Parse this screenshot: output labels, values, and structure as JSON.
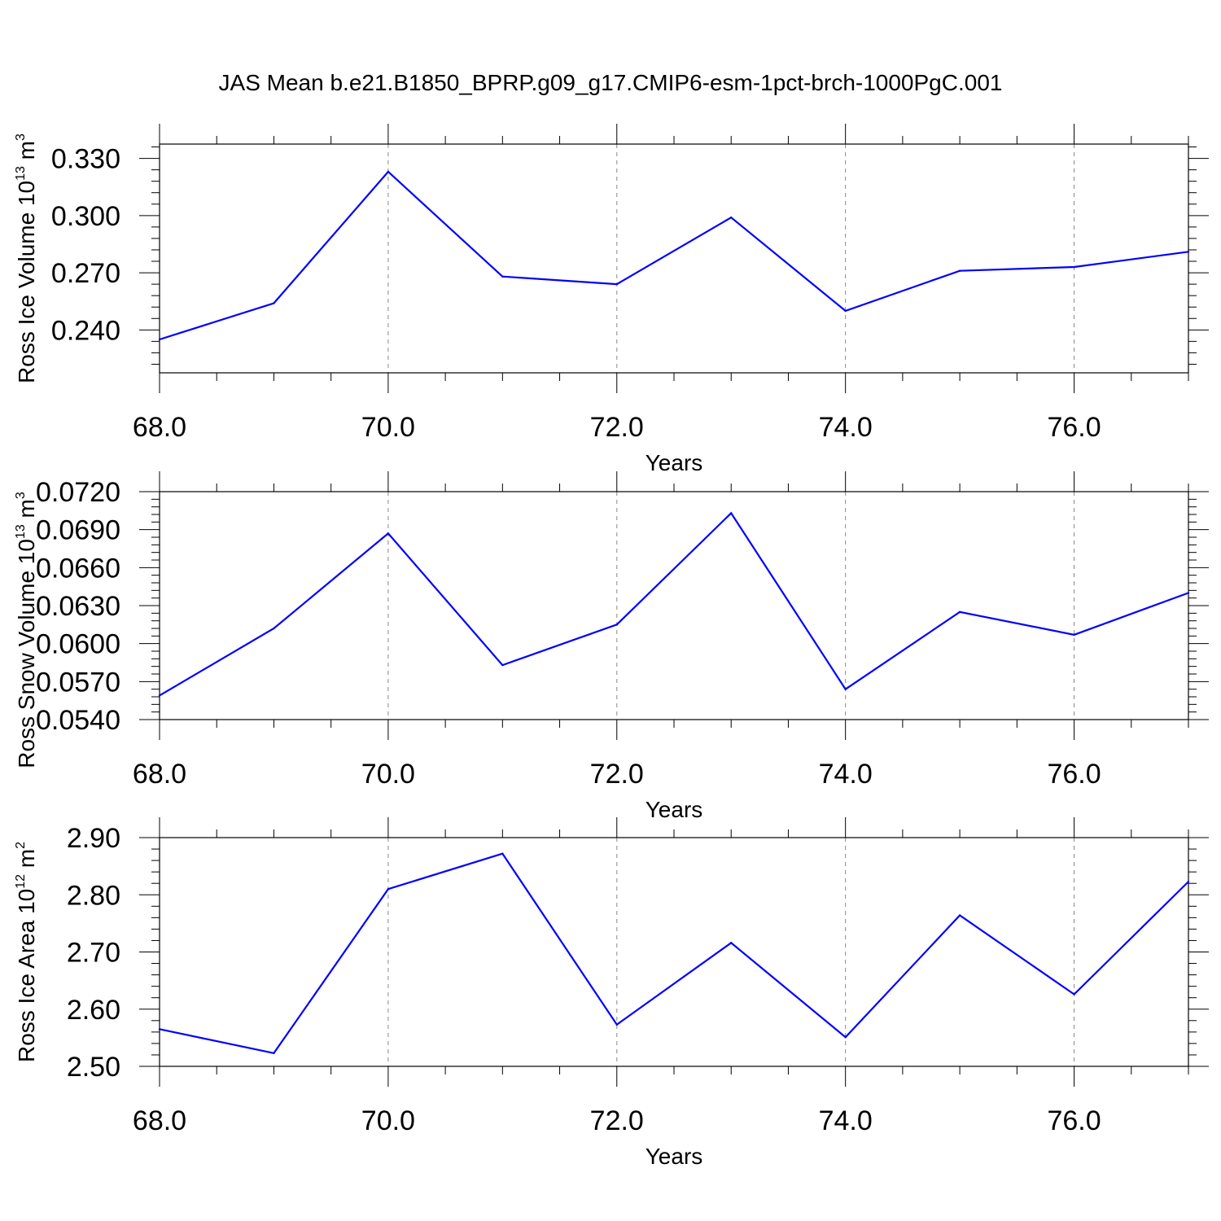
{
  "title": "JAS Mean b.e21.B1850_BPRP.g09_g17.CMIP6-esm-1pct-brch-1000PgC.001",
  "chart_data": [
    {
      "type": "line",
      "x": [
        68,
        69,
        70,
        71,
        72,
        73,
        74,
        75,
        76,
        77
      ],
      "series": [
        {
          "values": [
            0.235,
            0.254,
            0.323,
            0.268,
            0.264,
            0.299,
            0.25,
            0.271,
            0.273,
            0.281
          ]
        }
      ],
      "xlabel": "Years",
      "ylabel": {
        "base": "Ross Ice Volume 10",
        "exp1": "13",
        "mid": " m",
        "exp2": "3"
      },
      "xlim": [
        68,
        77
      ],
      "ylim": [
        0.2175,
        0.3375
      ],
      "xticks": [
        68,
        70,
        72,
        74,
        76
      ],
      "xtick_labels": [
        "68.0",
        "70.0",
        "72.0",
        "74.0",
        "76.0"
      ],
      "yticks": [
        0.24,
        0.27,
        0.3,
        0.33
      ],
      "ytick_labels": [
        "0.240",
        "0.270",
        "0.300",
        "0.330"
      ],
      "line_color": "#0000ff",
      "grid": "vertical dashed at major x ticks"
    },
    {
      "type": "line",
      "x": [
        68,
        69,
        70,
        71,
        72,
        73,
        74,
        75,
        76,
        77
      ],
      "series": [
        {
          "values": [
            0.0559,
            0.0612,
            0.0687,
            0.0583,
            0.0615,
            0.0703,
            0.0564,
            0.0625,
            0.0607,
            0.064
          ]
        }
      ],
      "xlabel": "Years",
      "ylabel": {
        "base": "Ross Snow Volume 10",
        "exp1": "13",
        "mid": " m",
        "exp2": "3"
      },
      "xlim": [
        68,
        77
      ],
      "ylim": [
        0.054,
        0.072
      ],
      "xticks": [
        68,
        70,
        72,
        74,
        76
      ],
      "xtick_labels": [
        "68.0",
        "70.0",
        "72.0",
        "74.0",
        "76.0"
      ],
      "yticks": [
        0.054,
        0.057,
        0.06,
        0.063,
        0.066,
        0.069,
        0.072
      ],
      "ytick_labels": [
        "0.0540",
        "0.0570",
        "0.0600",
        "0.0630",
        "0.0660",
        "0.0690",
        "0.0720"
      ],
      "line_color": "#0000ff",
      "grid": "vertical dashed at major x ticks"
    },
    {
      "type": "line",
      "x": [
        68,
        69,
        70,
        71,
        72,
        73,
        74,
        75,
        76,
        77
      ],
      "series": [
        {
          "values": [
            2.565,
            2.523,
            2.81,
            2.872,
            2.573,
            2.716,
            2.551,
            2.764,
            2.626,
            2.823
          ]
        }
      ],
      "xlabel": "Years",
      "ylabel": {
        "base": "Ross Ice Area 10",
        "exp1": "12",
        "mid": " m",
        "exp2": "2"
      },
      "xlim": [
        68,
        77
      ],
      "ylim": [
        2.5,
        2.9
      ],
      "xticks": [
        68,
        70,
        72,
        74,
        76
      ],
      "xtick_labels": [
        "68.0",
        "70.0",
        "72.0",
        "74.0",
        "76.0"
      ],
      "yticks": [
        2.5,
        2.6,
        2.7,
        2.8,
        2.9
      ],
      "ytick_labels": [
        "2.50",
        "2.60",
        "2.70",
        "2.80",
        "2.90"
      ],
      "line_color": "#0000ff",
      "grid": "vertical dashed at major x ticks"
    }
  ]
}
